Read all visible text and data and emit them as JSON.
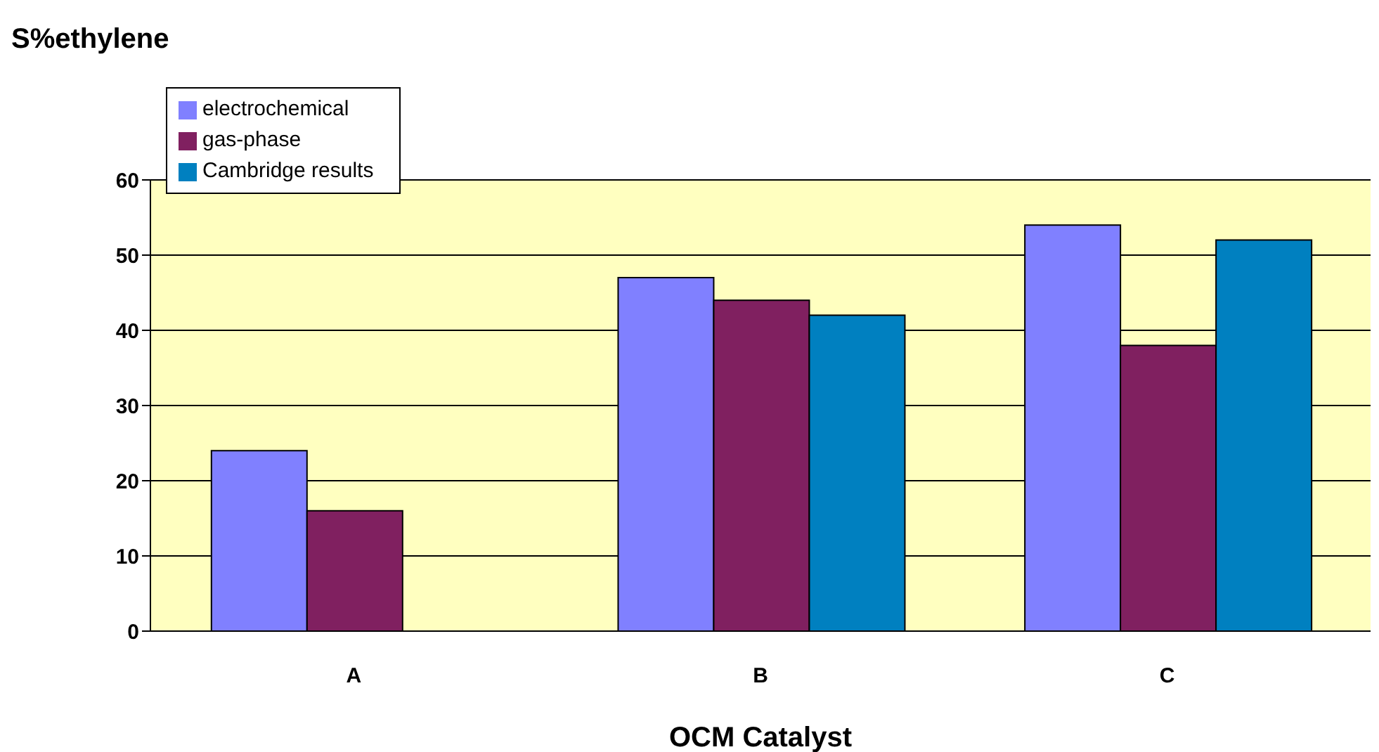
{
  "chart_data": {
    "type": "bar",
    "xlabel": "OCM Catalyst",
    "ylabel": "S%ethylene",
    "categories": [
      "A",
      "B",
      "C"
    ],
    "series": [
      {
        "name": "electrochemical",
        "color": "#8080ff",
        "values": [
          24,
          47,
          54
        ]
      },
      {
        "name": "gas-phase",
        "color": "#802060",
        "values": [
          16,
          44,
          38
        ]
      },
      {
        "name": "Cambridge results",
        "color": "#0080c0",
        "values": [
          null,
          42,
          52
        ]
      }
    ],
    "ylim": [
      0,
      60
    ],
    "yticks": [
      0,
      10,
      20,
      30,
      40,
      50,
      60
    ],
    "grid": "y",
    "legend": "top left"
  }
}
